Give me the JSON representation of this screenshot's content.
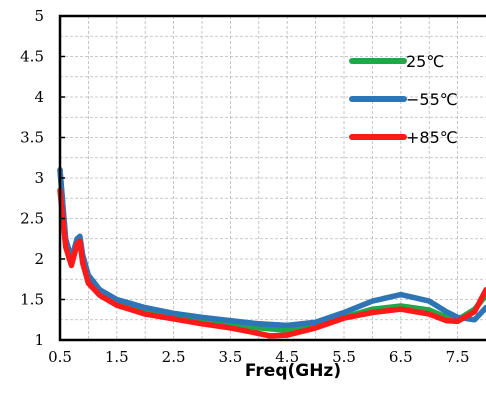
{
  "chart_data": {
    "type": "line",
    "title": "",
    "xlabel": "Freq(GHz)",
    "ylabel": "",
    "xlim": [
      0.5,
      8.0
    ],
    "ylim": [
      1,
      5
    ],
    "x_ticks": [
      "0.5",
      "1.5",
      "2.5",
      "3.5",
      "4.5",
      "5.5",
      "6.5",
      "7.5"
    ],
    "x_tick_values": [
      0.5,
      1.5,
      2.5,
      3.5,
      4.5,
      5.5,
      6.5,
      7.5
    ],
    "y_ticks": [
      "1",
      "1.5",
      "2",
      "2.5",
      "3",
      "3.5",
      "4",
      "4.5",
      "5"
    ],
    "y_tick_values": [
      1,
      1.5,
      2,
      2.5,
      3,
      3.5,
      4,
      4.5,
      5
    ],
    "grid": true,
    "legend_position": "top-right",
    "series": [
      {
        "name": "25℃",
        "color": "#1fa848",
        "points": [
          [
            0.5,
            3.1
          ],
          [
            0.6,
            2.2
          ],
          [
            0.7,
            1.95
          ],
          [
            0.8,
            2.2
          ],
          [
            0.85,
            2.25
          ],
          [
            0.9,
            2.0
          ],
          [
            1.0,
            1.75
          ],
          [
            1.2,
            1.6
          ],
          [
            1.5,
            1.47
          ],
          [
            2.0,
            1.37
          ],
          [
            2.5,
            1.3
          ],
          [
            3.0,
            1.25
          ],
          [
            3.5,
            1.2
          ],
          [
            4.0,
            1.15
          ],
          [
            4.5,
            1.12
          ],
          [
            5.0,
            1.18
          ],
          [
            5.5,
            1.28
          ],
          [
            6.0,
            1.38
          ],
          [
            6.5,
            1.42
          ],
          [
            7.0,
            1.37
          ],
          [
            7.3,
            1.28
          ],
          [
            7.5,
            1.25
          ],
          [
            7.8,
            1.38
          ],
          [
            8.0,
            1.55
          ]
        ]
      },
      {
        "name": "−55℃",
        "color": "#2e75b6",
        "points": [
          [
            0.5,
            3.1
          ],
          [
            0.6,
            2.25
          ],
          [
            0.7,
            2.0
          ],
          [
            0.8,
            2.25
          ],
          [
            0.85,
            2.28
          ],
          [
            0.9,
            2.05
          ],
          [
            1.0,
            1.8
          ],
          [
            1.2,
            1.62
          ],
          [
            1.5,
            1.5
          ],
          [
            2.0,
            1.4
          ],
          [
            2.5,
            1.33
          ],
          [
            3.0,
            1.28
          ],
          [
            3.5,
            1.24
          ],
          [
            4.0,
            1.2
          ],
          [
            4.5,
            1.18
          ],
          [
            5.0,
            1.22
          ],
          [
            5.5,
            1.34
          ],
          [
            6.0,
            1.48
          ],
          [
            6.5,
            1.56
          ],
          [
            7.0,
            1.48
          ],
          [
            7.3,
            1.35
          ],
          [
            7.5,
            1.28
          ],
          [
            7.8,
            1.25
          ],
          [
            8.0,
            1.4
          ]
        ]
      },
      {
        "name": "+85℃",
        "color": "#ff1a1a",
        "points": [
          [
            0.5,
            2.85
          ],
          [
            0.6,
            2.15
          ],
          [
            0.7,
            1.92
          ],
          [
            0.8,
            2.18
          ],
          [
            0.85,
            2.22
          ],
          [
            0.9,
            1.95
          ],
          [
            1.0,
            1.7
          ],
          [
            1.2,
            1.55
          ],
          [
            1.5,
            1.43
          ],
          [
            2.0,
            1.32
          ],
          [
            2.5,
            1.26
          ],
          [
            3.0,
            1.2
          ],
          [
            3.5,
            1.15
          ],
          [
            4.0,
            1.08
          ],
          [
            4.2,
            1.05
          ],
          [
            4.5,
            1.06
          ],
          [
            5.0,
            1.15
          ],
          [
            5.5,
            1.27
          ],
          [
            6.0,
            1.34
          ],
          [
            6.5,
            1.38
          ],
          [
            7.0,
            1.32
          ],
          [
            7.3,
            1.24
          ],
          [
            7.5,
            1.23
          ],
          [
            7.8,
            1.35
          ],
          [
            8.0,
            1.62
          ]
        ]
      }
    ]
  }
}
